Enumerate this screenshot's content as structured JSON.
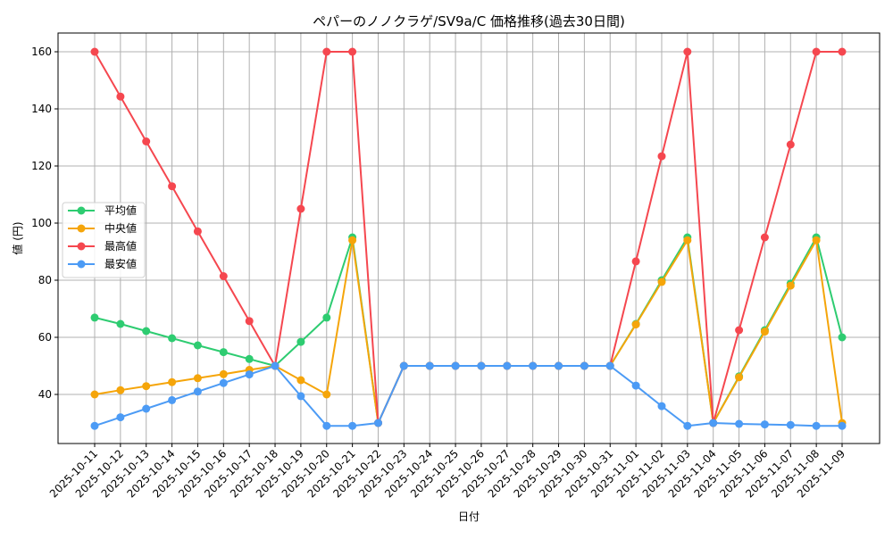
{
  "chart_data": {
    "type": "line",
    "title": "ペパーのノノクラゲ/SV9a/C 価格推移(過去30日間)",
    "xlabel": "日付",
    "ylabel": "値 (円)",
    "ylim": [
      22,
      166
    ],
    "yticks": [
      40,
      60,
      80,
      100,
      120,
      140,
      160
    ],
    "grid": true,
    "legend_position": "center-left",
    "categories": [
      "2025-10-11",
      "2025-10-12",
      "2025-10-13",
      "2025-10-14",
      "2025-10-15",
      "2025-10-16",
      "2025-10-17",
      "2025-10-18",
      "2025-10-19",
      "2025-10-20",
      "2025-10-21",
      "2025-10-22",
      "2025-10-23",
      "2025-10-24",
      "2025-10-25",
      "2025-10-26",
      "2025-10-27",
      "2025-10-28",
      "2025-10-29",
      "2025-10-30",
      "2025-10-31",
      "2025-11-01",
      "2025-11-02",
      "2025-11-03",
      "2025-11-04",
      "2025-11-05",
      "2025-11-06",
      "2025-11-07",
      "2025-11-08",
      "2025-11-09"
    ],
    "series": [
      {
        "name": "平均値",
        "color": "#2ecc71",
        "values": [
          66.9,
          64.7,
          62.2,
          59.7,
          57.2,
          54.8,
          52.4,
          50,
          58.4,
          66.9,
          95,
          30,
          50,
          50,
          50,
          50,
          50,
          50,
          50,
          50,
          50,
          64.7,
          80,
          95,
          30,
          46.3,
          62.5,
          78.8,
          95,
          60
        ]
      },
      {
        "name": "中央値",
        "color": "#f5a50a",
        "values": [
          40,
          41.5,
          42.9,
          44.3,
          45.7,
          47.1,
          48.6,
          50,
          45,
          40,
          94,
          30,
          50,
          50,
          50,
          50,
          50,
          50,
          50,
          50,
          50,
          64.5,
          79.4,
          94,
          30,
          46,
          62,
          78.1,
          94,
          30
        ]
      },
      {
        "name": "最高値",
        "color": "#f5474f",
        "values": [
          160,
          144.3,
          128.6,
          112.9,
          97.1,
          81.4,
          65.7,
          50,
          105,
          160,
          160,
          30,
          50,
          50,
          50,
          50,
          50,
          50,
          50,
          50,
          50,
          86.6,
          123.4,
          160,
          30,
          62.5,
          95,
          127.5,
          160,
          160
        ]
      },
      {
        "name": "最安値",
        "color": "#4c9bf5",
        "values": [
          29,
          32,
          35,
          38,
          41,
          44,
          47,
          50,
          39.4,
          29,
          29,
          30,
          50,
          50,
          50,
          50,
          50,
          50,
          50,
          50,
          50,
          43.1,
          35.9,
          29,
          30,
          29.7,
          29.5,
          29.3,
          29,
          29
        ]
      }
    ]
  }
}
